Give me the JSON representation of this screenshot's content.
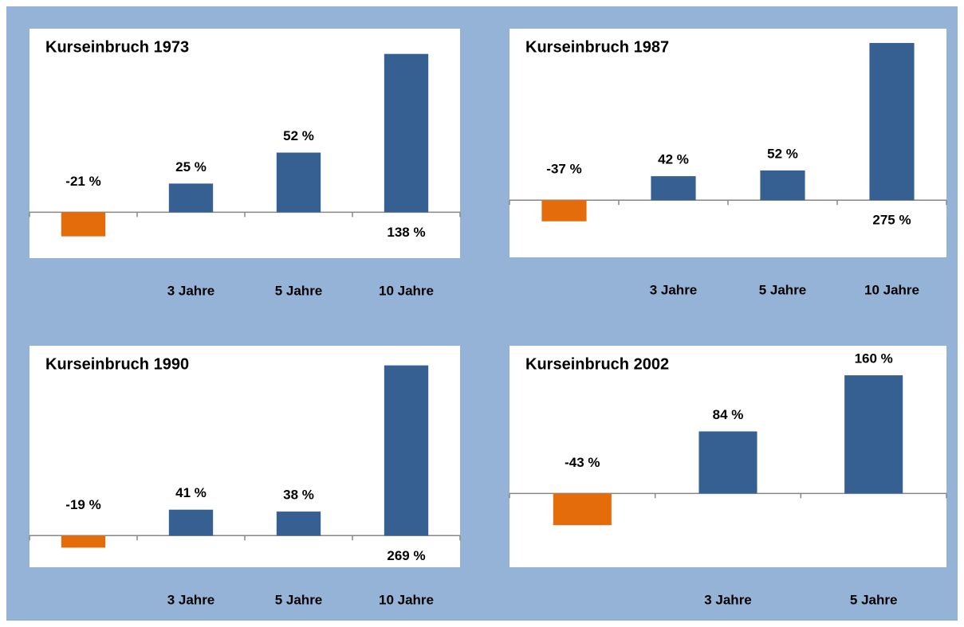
{
  "chart_data": [
    {
      "type": "bar",
      "title": "Kurseinbruch 1973",
      "categories": [
        null,
        "3 Jahre",
        "5 Jahre",
        "10 Jahre"
      ],
      "values": [
        -21,
        25,
        52,
        138
      ],
      "value_labels": [
        "-21 %",
        "25 %",
        "52 %",
        "138 %"
      ],
      "colors": [
        "#e46c0a",
        "#376092",
        "#376092",
        "#376092"
      ],
      "ylim": [
        -40,
        160
      ]
    },
    {
      "type": "bar",
      "title": "Kurseinbruch 1987",
      "categories": [
        null,
        "3 Jahre",
        "5 Jahre",
        "10 Jahre"
      ],
      "values": [
        -37,
        42,
        52,
        275
      ],
      "value_labels": [
        "-37 %",
        "42 %",
        "52 %",
        "275 %"
      ],
      "colors": [
        "#e46c0a",
        "#376092",
        "#376092",
        "#376092"
      ],
      "ylim": [
        -100,
        300
      ]
    },
    {
      "type": "bar",
      "title": "Kurseinbruch 1990",
      "categories": [
        null,
        "3 Jahre",
        "5 Jahre",
        "10 Jahre"
      ],
      "values": [
        -19,
        41,
        38,
        269
      ],
      "value_labels": [
        "-19 %",
        "41 %",
        "38 %",
        "269 %"
      ],
      "colors": [
        "#e46c0a",
        "#376092",
        "#376092",
        "#376092"
      ],
      "ylim": [
        -50,
        300
      ]
    },
    {
      "type": "bar",
      "title": "Kurseinbruch 2002",
      "categories": [
        null,
        "3 Jahre",
        "5 Jahre"
      ],
      "values": [
        -43,
        84,
        160
      ],
      "value_labels": [
        "-43 %",
        "84 %",
        "160 %"
      ],
      "colors": [
        "#e46c0a",
        "#376092",
        "#376092"
      ],
      "ylim": [
        -100,
        200
      ]
    }
  ]
}
